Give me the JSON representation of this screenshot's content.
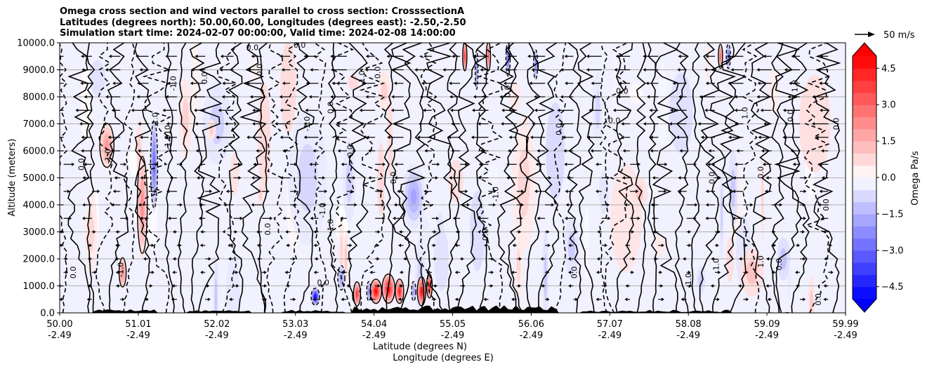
{
  "chart_data": {
    "type": "contourf",
    "title_lines": [
      "Omega cross section and wind vectors parallel to cross section: CrosssectionA",
      "Latitudes (degrees north): 50.00,60.00, Longitudes (degrees east): -2.50,-2.50",
      "Simulation start time: 2024-02-07 00:00:00, Valid time: 2024-02-08 14:00:00"
    ],
    "xlabel_lat": "Latitude (degrees N)",
    "xlabel_lon": "Longitude (degrees E)",
    "ylabel": "Altitude (meters)",
    "xlim": [
      50.0,
      59.99
    ],
    "ylim": [
      0,
      10000
    ],
    "x_ticks_lat": [
      "50.00",
      "51.01",
      "52.02",
      "53.03",
      "54.04",
      "55.05",
      "56.06",
      "57.07",
      "58.08",
      "59.09",
      "59.99"
    ],
    "x_ticks_lon": [
      "-2.49",
      "-2.49",
      "-2.49",
      "-2.49",
      "-2.49",
      "-2.49",
      "-2.49",
      "-2.49",
      "-2.49",
      "-2.49",
      "-2.49"
    ],
    "y_ticks": [
      "0.0",
      "1000.0",
      "2000.0",
      "3000.0",
      "4000.0",
      "5000.0",
      "6000.0",
      "7000.0",
      "8000.0",
      "9000.0",
      "10000.0"
    ],
    "y_tick_values": [
      0,
      1000,
      2000,
      3000,
      4000,
      5000,
      6000,
      7000,
      8000,
      9000,
      10000
    ],
    "grid": "horizontal",
    "colorbar": {
      "label": "Omega Pa/s",
      "range": [
        -5.0,
        5.0
      ],
      "extend": "both",
      "tick_labels": [
        "4.5",
        "3.0",
        "1.5",
        "0.0",
        "−1.5",
        "−3.0",
        "−4.5"
      ],
      "tick_values": [
        4.5,
        3.0,
        1.5,
        0.0,
        -1.5,
        -3.0,
        -4.5
      ],
      "cmap": "bwr"
    },
    "quiver_key": {
      "label": "50 m/s",
      "speed": 50
    },
    "contour_labels": [
      {
        "text": "0.0",
        "lat": 50.18,
        "alt": 1500,
        "rot": -90
      },
      {
        "text": "0.0",
        "lat": 50.28,
        "alt": 5500,
        "rot": -90
      },
      {
        "text": "-1.0",
        "lat": 50.62,
        "alt": 5800,
        "rot": -90
      },
      {
        "text": "-1.0",
        "lat": 50.78,
        "alt": 1600,
        "rot": -90
      },
      {
        "text": "-1.010",
        "lat": 51.38,
        "alt": 6500,
        "rot": -90
      },
      {
        "text": "1.0",
        "lat": 51.22,
        "alt": 7200,
        "rot": -90
      },
      {
        "text": "-1.0",
        "lat": 51.45,
        "alt": 8500,
        "rot": -90
      },
      {
        "text": "0.0",
        "lat": 51.85,
        "alt": 8700,
        "rot": -90
      },
      {
        "text": "0.0",
        "lat": 52.45,
        "alt": 9800,
        "rot": 0
      },
      {
        "text": "0.0",
        "lat": 53.05,
        "alt": 9900,
        "rot": 0
      },
      {
        "text": "0.0",
        "lat": 52.55,
        "alt": 9000,
        "rot": -90
      },
      {
        "text": "0.0",
        "lat": 52.65,
        "alt": 3100,
        "rot": -90
      },
      {
        "text": "-1.0",
        "lat": 53.15,
        "alt": 7000,
        "rot": -90
      },
      {
        "text": "-1.0",
        "lat": 53.35,
        "alt": 3800,
        "rot": -90
      },
      {
        "text": "-1.0",
        "lat": 53.45,
        "alt": 3200,
        "rot": -90
      },
      {
        "text": "0.0",
        "lat": 53.45,
        "alt": 7600,
        "rot": -90
      },
      {
        "text": "0.0",
        "lat": 53.7,
        "alt": 6000,
        "rot": -90
      },
      {
        "text": "-1.0",
        "lat": 53.85,
        "alt": 8700,
        "rot": -90
      },
      {
        "text": "0.0",
        "lat": 54.05,
        "alt": 8900,
        "rot": -90
      },
      {
        "text": "0.0",
        "lat": 54.25,
        "alt": 5000,
        "rot": -90
      },
      {
        "text": "0.0",
        "lat": 53.35,
        "alt": 1100,
        "rot": 0
      },
      {
        "text": "0.0",
        "lat": 55.42,
        "alt": 2900,
        "rot": -90
      },
      {
        "text": "-1.0",
        "lat": 55.55,
        "alt": 4400,
        "rot": -90
      },
      {
        "text": "0.0",
        "lat": 55.7,
        "alt": 8200,
        "rot": -90
      },
      {
        "text": "0.0",
        "lat": 56.35,
        "alt": 6800,
        "rot": -90
      },
      {
        "text": "0.0",
        "lat": 57.05,
        "alt": 7100,
        "rot": 0
      },
      {
        "text": "0.0",
        "lat": 57.15,
        "alt": 8200,
        "rot": 0
      },
      {
        "text": "0.0",
        "lat": 56.55,
        "alt": 1500,
        "rot": -90
      },
      {
        "text": "-1.0",
        "lat": 58.0,
        "alt": 1200,
        "rot": -90
      },
      {
        "text": "1.0",
        "lat": 58.35,
        "alt": 1800,
        "rot": -90
      },
      {
        "text": "0.0",
        "lat": 58.3,
        "alt": 5000,
        "rot": -90
      },
      {
        "text": "0.0",
        "lat": 58.92,
        "alt": 5200,
        "rot": -90
      },
      {
        "text": "1.0",
        "lat": 58.72,
        "alt": 7400,
        "rot": -90
      },
      {
        "text": "0.0",
        "lat": 59.15,
        "alt": 1800,
        "rot": -90
      },
      {
        "text": "1.0",
        "lat": 58.92,
        "alt": 1900,
        "rot": -90
      },
      {
        "text": "0.0",
        "lat": 59.3,
        "alt": 7300,
        "rot": -90
      },
      {
        "text": "1.0",
        "lat": 59.35,
        "alt": 8400,
        "rot": -90
      },
      {
        "text": "0.0",
        "lat": 59.88,
        "alt": 7000,
        "rot": -90
      },
      {
        "text": "0.0",
        "lat": 59.75,
        "alt": 4000,
        "rot": -90
      },
      {
        "text": "0.0",
        "lat": 59.65,
        "alt": 500,
        "rot": -90
      }
    ]
  }
}
